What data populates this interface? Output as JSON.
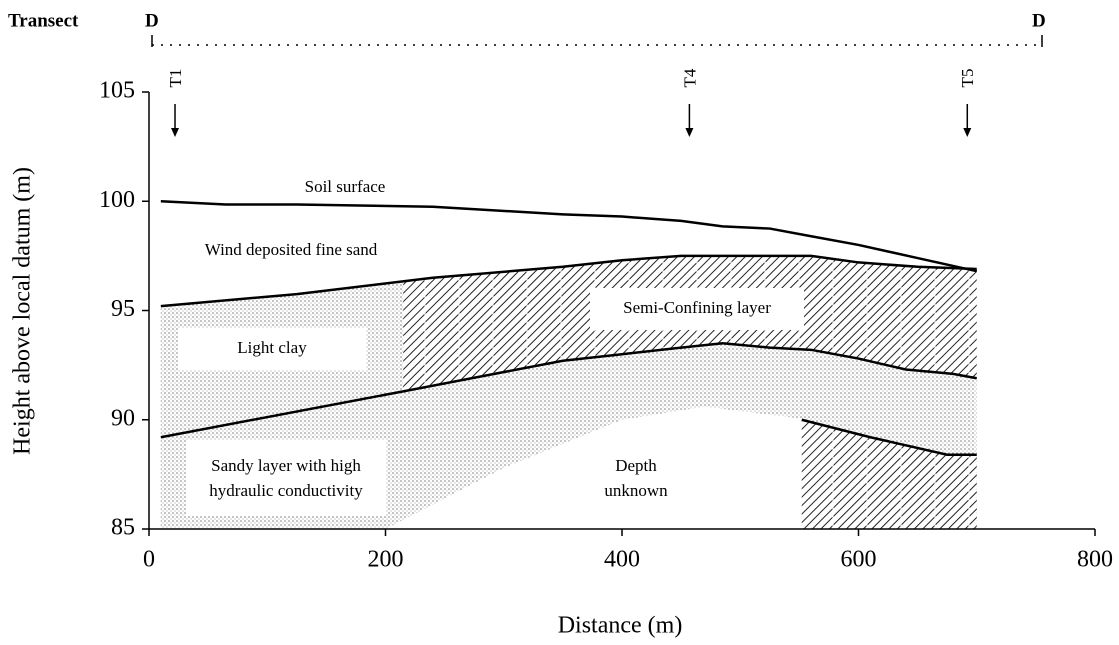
{
  "chart_data": {
    "type": "line",
    "header": {
      "label": "Transect",
      "start": "D",
      "end": "D"
    },
    "xlabel": "Distance (m)",
    "ylabel": "Height above local datum (m)",
    "xlim": [
      0,
      800
    ],
    "ylim": [
      85,
      105
    ],
    "xticks": [
      0,
      200,
      400,
      600,
      800
    ],
    "yticks": [
      85,
      90,
      95,
      100,
      105
    ],
    "grid": false,
    "markers": [
      {
        "label": "T1",
        "x": 22
      },
      {
        "label": "T4",
        "x": 457
      },
      {
        "label": "T5",
        "x": 692
      }
    ],
    "series": [
      {
        "color": "#000000",
        "x": [
          10,
          65,
          125,
          240,
          350,
          400,
          450,
          485,
          525,
          560,
          600,
          650,
          700
        ],
        "values": [
          100,
          99.85,
          99.85,
          99.75,
          99.4,
          99.3,
          99.1,
          98.85,
          98.75,
          98.4,
          98.0,
          97.4,
          96.8
        ]
      },
      {
        "color": "#000000",
        "x": [
          10,
          125,
          240,
          350,
          400,
          450,
          490,
          560,
          600,
          650,
          700
        ],
        "values": [
          95.2,
          95.75,
          96.5,
          97,
          97.3,
          97.5,
          97.5,
          97.5,
          97.2,
          97.0,
          96.9
        ]
      },
      {
        "color": "#000000",
        "x": [
          10,
          215,
          350,
          400,
          450,
          485,
          525,
          560,
          600,
          640,
          680,
          700
        ],
        "values": [
          89.2,
          91.3,
          92.7,
          93,
          93.3,
          93.5,
          93.3,
          93.2,
          92.8,
          92.3,
          92.1,
          91.9
        ]
      },
      {
        "color": "#000000",
        "x": [
          552,
          610,
          675,
          700
        ],
        "values": [
          90,
          89.2,
          88.4,
          88.4
        ]
      }
    ],
    "annotations": {
      "soil": "Soil surface",
      "wind": "Wind deposited fine sand",
      "semi": "Semi-Confining layer",
      "clay": "Light clay",
      "sandy": [
        "Sandy layer with high",
        "hydraulic conductivity"
      ],
      "depth": [
        "Depth",
        "unknown"
      ]
    }
  }
}
